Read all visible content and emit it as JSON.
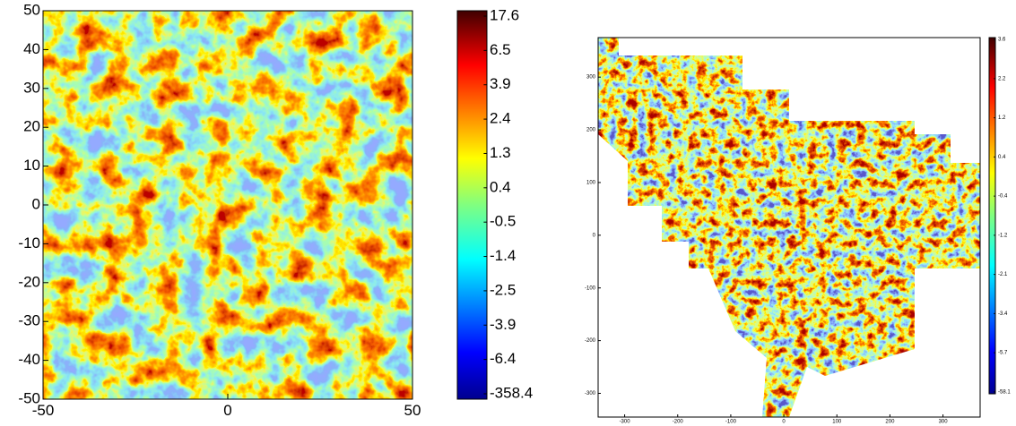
{
  "chart_data": [
    {
      "type": "heatmap",
      "xlim": [
        -50,
        50
      ],
      "xticks": [
        -50,
        0,
        50
      ],
      "ylim": [
        -50,
        50
      ],
      "yticks": [
        -50,
        -40,
        -30,
        -20,
        -10,
        0,
        10,
        20,
        30,
        40,
        50
      ],
      "colorbar_ticks": [
        17.6,
        6.5,
        3.9,
        2.4,
        1.3,
        0.4,
        -0.5,
        -1.4,
        -2.5,
        -3.9,
        -6.4,
        -358.4
      ]
    },
    {
      "type": "heatmap",
      "xlim": [
        -350,
        370
      ],
      "xticks": [
        -300,
        -200,
        -100,
        0,
        100,
        200,
        300
      ],
      "ylim": [
        -345,
        375
      ],
      "yticks": [
        -300,
        -200,
        -100,
        0,
        100,
        200,
        300
      ],
      "colorbar_ticks": [
        3.6,
        2.2,
        1.2,
        0.4,
        -0.4,
        -1.2,
        -2.1,
        -3.4,
        -5.7,
        -58.1
      ]
    }
  ]
}
